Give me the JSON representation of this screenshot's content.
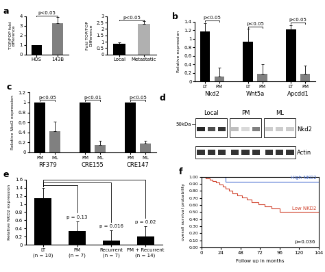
{
  "chart_data": [
    {
      "panel": "a",
      "type": "bar",
      "ylabel": "TOP/FOP fold\ndifference",
      "categories": [
        "HOS",
        "143B"
      ],
      "values": [
        1,
        3.3
      ],
      "errors": [
        0,
        0.6
      ],
      "colors": [
        "#000000",
        "#808080"
      ],
      "ylim": [
        0,
        4
      ],
      "yticks": [
        0,
        1,
        2,
        3,
        4
      ],
      "annotations": [
        {
          "text": "p<0.05",
          "between": [
            "HOS",
            "143B"
          ]
        }
      ]
    },
    {
      "type": "bar",
      "ylabel": "Fold TOP/FOP\nDifference",
      "categories": [
        "Local",
        "Metastatic"
      ],
      "values": [
        0.85,
        2.4
      ],
      "errors": [
        0.08,
        0.2
      ],
      "colors": [
        "#000000",
        "#b0b0b0"
      ],
      "ylim": [
        0,
        3
      ],
      "yticks": [
        0,
        0.5,
        1,
        1.5,
        2,
        2.5,
        3
      ],
      "annotations": [
        {
          "text": "p<0.05",
          "between": [
            "Local",
            "Metastatic"
          ]
        }
      ]
    },
    {
      "panel": "b",
      "type": "bar",
      "ylabel": "Relative expression",
      "categories": [
        "Nkd2",
        "Wnt5a",
        "Apcdd1"
      ],
      "series": [
        {
          "name": "LT",
          "color": "#000000",
          "values": [
            1.17,
            0.93,
            1.22
          ],
          "errors": [
            0.2,
            0.3,
            0.1
          ]
        },
        {
          "name": "PM",
          "color": "#808080",
          "values": [
            0.12,
            0.18,
            0.18
          ],
          "errors": [
            0.2,
            0.22,
            0.2
          ]
        }
      ],
      "ylim": [
        0,
        1.4
      ],
      "yticks": [
        0,
        0.2,
        0.4,
        0.6,
        0.8,
        1,
        1.2,
        1.4
      ],
      "annotations": [
        {
          "text": "p<0.05",
          "group": "Nkd2"
        },
        {
          "text": "p<0.05",
          "group": "Wnt5a"
        },
        {
          "text": "p<0.05",
          "group": "Apcdd1"
        }
      ]
    },
    {
      "panel": "c",
      "type": "bar",
      "ylabel": "Relative Nkd2 expression",
      "categories": [
        "RF379",
        "CRE155",
        "CRE147"
      ],
      "series": [
        {
          "name": "PM",
          "color": "#000000",
          "values": [
            1,
            1,
            1
          ],
          "errors": [
            0,
            0,
            0
          ]
        },
        {
          "name": "ML",
          "color": "#808080",
          "values": [
            0.42,
            0.15,
            0.18
          ],
          "errors": [
            0.2,
            0.08,
            0.05
          ]
        }
      ],
      "ylim": [
        0,
        1.2
      ],
      "yticks": [
        0,
        0.2,
        0.4,
        0.6,
        0.8,
        1,
        1.2
      ],
      "annotations": [
        {
          "text": "p<0.05",
          "group": "RF379"
        },
        {
          "text": "p<0.01",
          "group": "CRE155"
        },
        {
          "text": "p<0.05",
          "group": "CRE147"
        }
      ]
    },
    {
      "panel": "e",
      "type": "bar",
      "ylabel": "Relative NKD2 expression",
      "categories": [
        "LT\n(n = 10)",
        "PM\n(n = 7)",
        "Recurrent\n(n = 7)",
        "PM + Recurrent\n(n = 14)"
      ],
      "values": [
        1.15,
        0.33,
        0.1,
        0.2
      ],
      "errors": [
        0.25,
        0.25,
        0.25,
        0.25
      ],
      "colors": [
        "#000000",
        "#000000",
        "#000000",
        "#000000"
      ],
      "ylim": [
        0,
        1.6
      ],
      "yticks": [
        0,
        0.2,
        0.4,
        0.6,
        0.8,
        1,
        1.2,
        1.4,
        1.6
      ],
      "annotations": [
        {
          "text": "p = 0.13",
          "from": "LT\n(n = 10)",
          "to": "PM\n(n = 7)"
        },
        {
          "text": "p = 0.016",
          "from": "LT\n(n = 10)",
          "to": "Recurrent\n(n = 7)"
        },
        {
          "text": "p = 0.02",
          "from": "LT\n(n = 10)",
          "to": "PM + Recurrent\n(n = 14)"
        }
      ]
    },
    {
      "panel": "f",
      "type": "line",
      "line_style": "steps",
      "xlabel": "Follow up in months",
      "ylabel": "overall survival probability",
      "series": [
        {
          "name": "High NKD2",
          "color": "#4a6fd0",
          "x": [
            0,
            30,
            144
          ],
          "values": [
            1,
            0.93,
            0.93
          ]
        },
        {
          "name": "Low NKD2",
          "color": "#d0402a",
          "x": [
            0,
            5,
            10,
            14,
            18,
            22,
            26,
            30,
            34,
            38,
            44,
            50,
            56,
            62,
            70,
            78,
            86,
            96,
            144
          ],
          "values": [
            1,
            0.98,
            0.96,
            0.94,
            0.92,
            0.89,
            0.86,
            0.83,
            0.8,
            0.77,
            0.74,
            0.71,
            0.68,
            0.64,
            0.61,
            0.58,
            0.55,
            0.5,
            0.5
          ]
        }
      ],
      "xlim": [
        0,
        144
      ],
      "xticks": [
        0,
        24,
        48,
        72,
        96,
        120,
        144
      ],
      "ylim": [
        0,
        1
      ],
      "yticks": [
        {
          "value": 0,
          "label": "0.00"
        },
        {
          "value": 0.1,
          "label": "0.10"
        },
        {
          "value": 0.2,
          "label": "0.20"
        },
        {
          "value": 0.3,
          "label": "0.30"
        },
        {
          "value": 0.4,
          "label": "0.40"
        },
        {
          "value": 0.5,
          "label": "0.50"
        },
        {
          "value": 0.6,
          "label": "0.60"
        },
        {
          "value": 0.7,
          "label": "0.70"
        },
        {
          "value": 0.8,
          "label": "0.80"
        },
        {
          "value": 0.9,
          "label": "0.90"
        },
        {
          "value": 1,
          "label": "1.00"
        }
      ],
      "annotations": [
        {
          "text": "p=0.036"
        }
      ]
    }
  ],
  "blot": {
    "panel": "d",
    "groups": [
      "Local",
      "PM",
      "ML"
    ],
    "size_marker": "50kDa",
    "rows": [
      "Nkd2",
      "Actin"
    ]
  }
}
